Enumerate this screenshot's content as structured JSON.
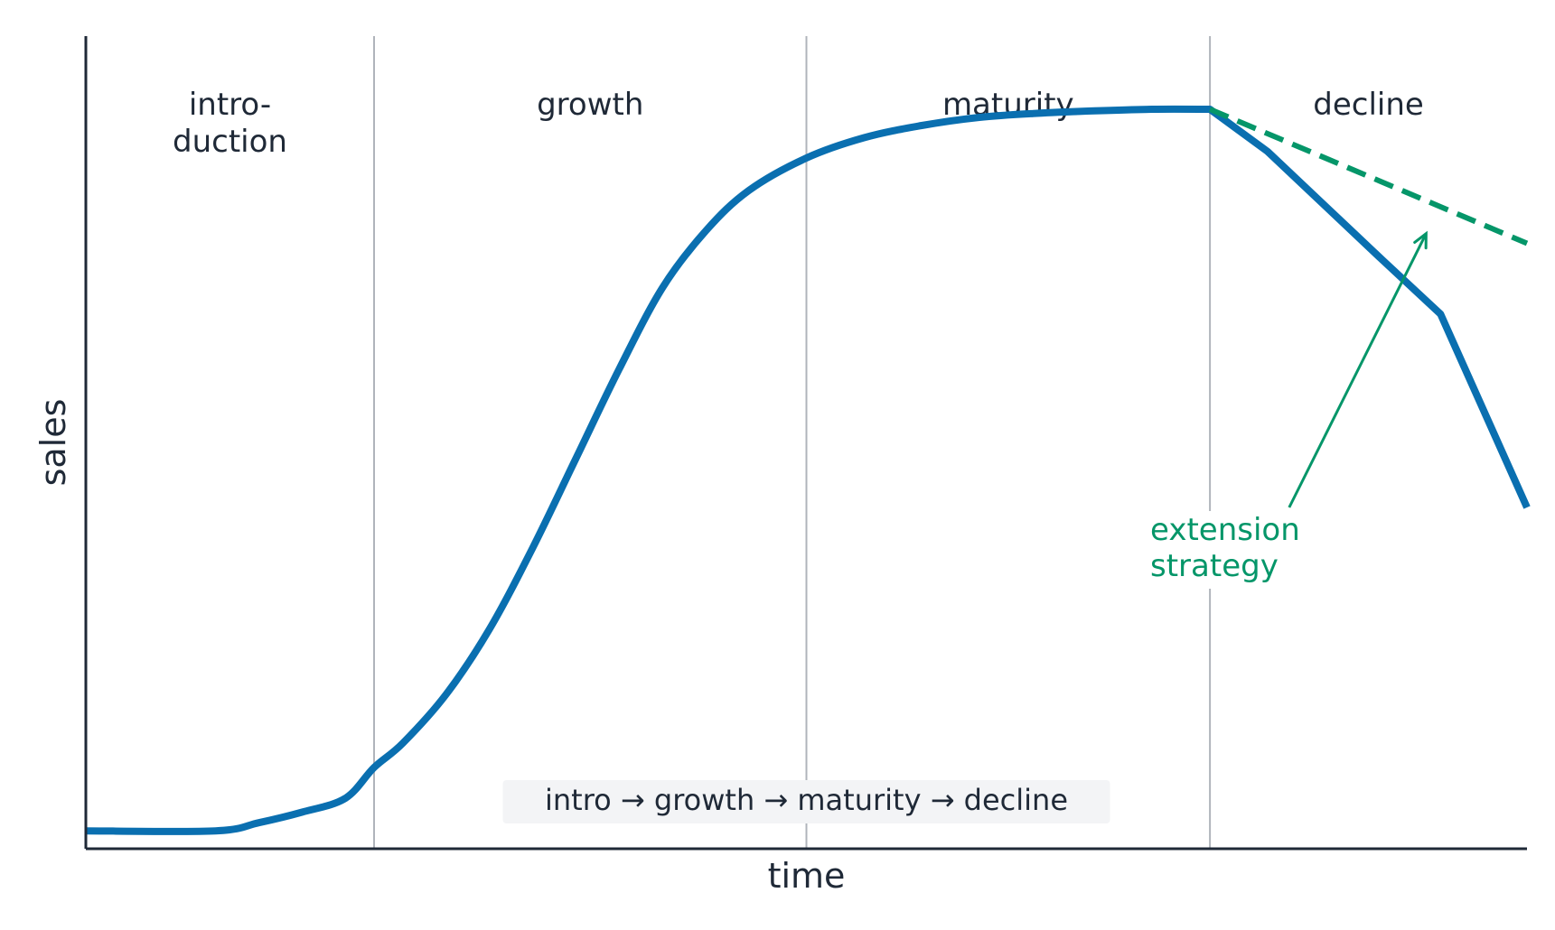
{
  "chart_data": {
    "type": "line",
    "title": "",
    "xlabel": "time",
    "ylabel": "sales",
    "xlim": [
      0,
      10
    ],
    "ylim": [
      0,
      1
    ],
    "grid": false,
    "x_tick_labels": [],
    "y_tick_labels": [],
    "stages": [
      {
        "label": "intro-\nduction",
        "start": 0,
        "end": 2
      },
      {
        "label": "growth",
        "start": 2,
        "end": 5
      },
      {
        "label": "maturity",
        "start": 5,
        "end": 7.8
      },
      {
        "label": "decline",
        "start": 7.8,
        "end": 10
      }
    ],
    "stage_boundaries": [
      2,
      5,
      7.8
    ],
    "series": [
      {
        "style": "solid",
        "color": "#0a6fb0",
        "x": [
          0,
          0.9,
          1.2,
          1.5,
          1.8,
          2.0,
          2.2,
          2.5,
          2.8,
          3.1,
          3.4,
          3.7,
          4.0,
          4.3,
          4.6,
          5.0,
          5.4,
          5.8,
          6.2,
          6.6,
          7.0,
          7.4,
          7.8,
          8.2,
          8.6,
          9.0,
          9.4,
          10.0
        ],
        "y": [
          0.022,
          0.022,
          0.032,
          0.045,
          0.062,
          0.1,
          0.13,
          0.19,
          0.27,
          0.37,
          0.48,
          0.59,
          0.69,
          0.76,
          0.81,
          0.85,
          0.875,
          0.89,
          0.9,
          0.905,
          0.908,
          0.91,
          0.91,
          0.858,
          0.791,
          0.724,
          0.658,
          0.42
        ]
      },
      {
        "style": "dashed",
        "color": "#059669",
        "x": [
          7.8,
          10.0
        ],
        "y": [
          0.91,
          0.745
        ]
      }
    ],
    "annotations": [
      {
        "text": "extension\nstrategy",
        "color": "#059669",
        "arrow_from": [
          8.35,
          0.42
        ],
        "arrow_to": [
          9.3,
          0.757
        ]
      }
    ],
    "summary_box": "intro → growth → maturity → decline",
    "colors": {
      "axis": "#1f2937",
      "divider": "#b0b4bb",
      "summary_bg": "#f3f4f6"
    }
  }
}
